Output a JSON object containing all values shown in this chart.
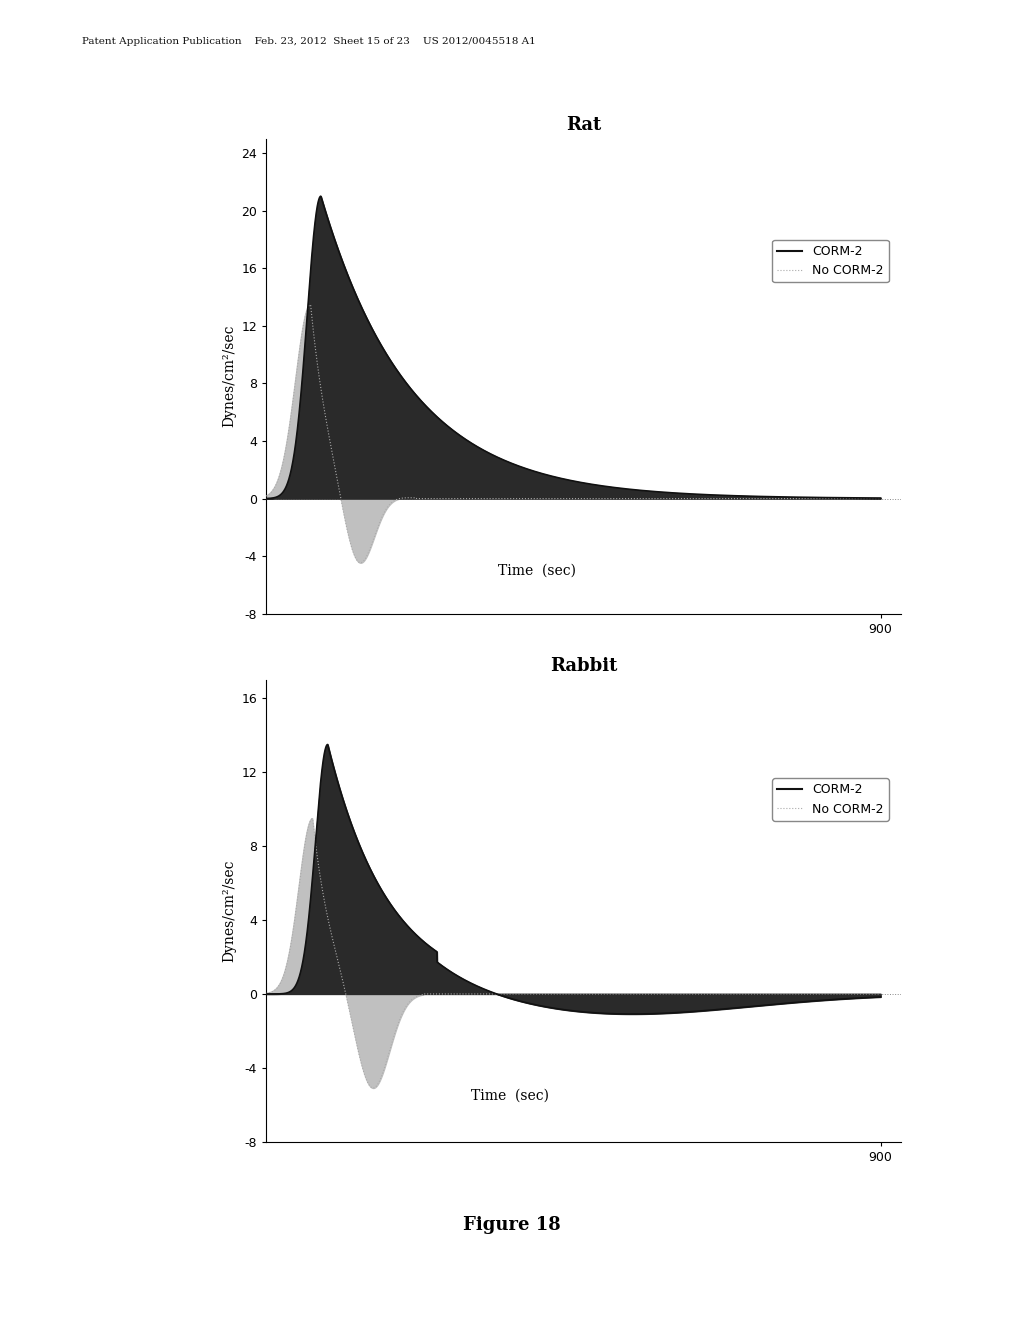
{
  "fig_width": 10.24,
  "fig_height": 13.2,
  "background_color": "#ffffff",
  "header_text": "Patent Application Publication    Feb. 23, 2012  Sheet 15 of 23    US 2012/0045518 A1",
  "figure_label": "Figure 18",
  "rat": {
    "title": "Rat",
    "title_fontsize": 13,
    "title_fontweight": "bold",
    "ylabel": "Dynes/cm²/sec",
    "xlabel": "Time  (sec)",
    "ylim": [
      -8,
      25
    ],
    "yticks": [
      -8,
      -4,
      0,
      4,
      8,
      12,
      16,
      20,
      24
    ],
    "xlim": [
      0,
      930
    ],
    "xtick_label": "900",
    "corm2_color": "#1a1a1a",
    "nocorm2_color": "#aaaaaa"
  },
  "rabbit": {
    "title": "Rabbit",
    "title_fontsize": 13,
    "title_fontweight": "bold",
    "ylabel": "Dynes/cm²/sec",
    "xlabel": "Time  (sec)",
    "ylim": [
      -8,
      17
    ],
    "yticks": [
      -8,
      -4,
      0,
      4,
      8,
      12,
      16
    ],
    "xlim": [
      0,
      930
    ],
    "xtick_label": "900",
    "corm2_color": "#1a1a1a",
    "nocorm2_color": "#aaaaaa"
  }
}
